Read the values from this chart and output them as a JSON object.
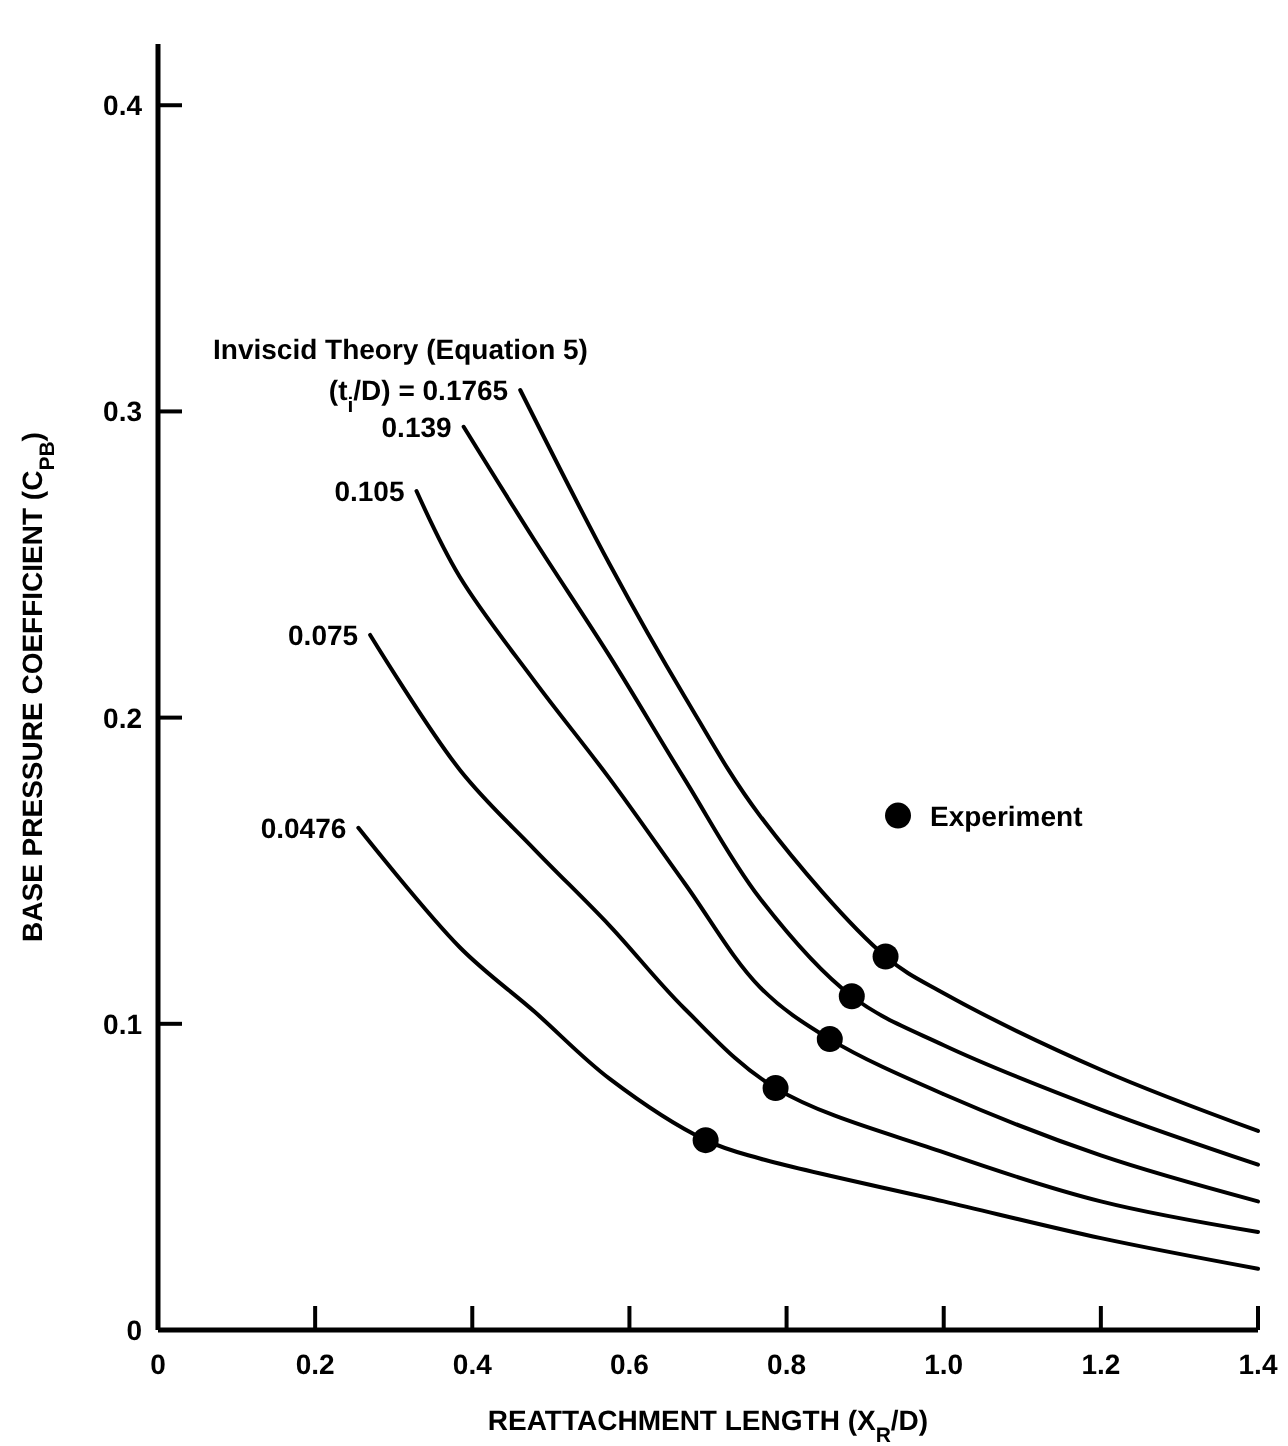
{
  "chart_data": {
    "type": "line",
    "xlabel": "REATTACHMENT LENGTH (X$_{R}$/D)",
    "ylabel": "BASE PRESSURE COEFFICIENT (C$_{PB}$)",
    "annotations": [
      "Inviscid Theory (Equation 5)"
    ],
    "xlim": [
      0,
      1.4
    ],
    "ylim": [
      0,
      0.42
    ],
    "xticks": [
      0,
      0.2,
      0.4,
      0.6,
      0.8,
      {
        "value": 1,
        "label": "1.0"
      },
      1.2,
      1.4
    ],
    "yticks": [
      0,
      0.1,
      0.2,
      0.3,
      0.4
    ],
    "grid": false,
    "legend": "right",
    "line_style": "solid",
    "series": [
      {
        "name": "(t$_{i}$/D) = 0.1765",
        "color": "#000000",
        "marker": "none",
        "x": [
          0.461,
          0.575,
          0.67,
          0.766,
          0.926,
          1.0,
          1.2,
          1.4
        ],
        "values": [
          0.307,
          0.25,
          0.207,
          0.168,
          0.122,
          0.11,
          0.085,
          0.065
        ]
      },
      {
        "name": "0.139",
        "color": "#000000",
        "marker": "none",
        "x": [
          0.389,
          0.479,
          0.575,
          0.67,
          0.766,
          0.883,
          1.0,
          1.2,
          1.4
        ],
        "values": [
          0.295,
          0.258,
          0.22,
          0.18,
          0.141,
          0.109,
          0.093,
          0.072,
          0.054
        ]
      },
      {
        "name": "0.105",
        "color": "#000000",
        "marker": "none",
        "x": [
          0.329,
          0.384,
          0.479,
          0.575,
          0.67,
          0.766,
          0.855,
          1.0,
          1.2,
          1.4
        ],
        "values": [
          0.274,
          0.246,
          0.212,
          0.18,
          0.146,
          0.112,
          0.095,
          0.077,
          0.057,
          0.042
        ]
      },
      {
        "name": "0.075",
        "color": "#000000",
        "marker": "none",
        "x": [
          0.27,
          0.384,
          0.479,
          0.575,
          0.67,
          0.786,
          1.0,
          1.2,
          1.4
        ],
        "values": [
          0.227,
          0.183,
          0.157,
          0.132,
          0.105,
          0.079,
          0.058,
          0.042,
          0.032
        ]
      },
      {
        "name": "0.0476",
        "color": "#000000",
        "marker": "none",
        "x": [
          0.255,
          0.384,
          0.479,
          0.575,
          0.697,
          0.766,
          1.0,
          1.2,
          1.4
        ],
        "values": [
          0.164,
          0.125,
          0.104,
          0.082,
          0.062,
          0.056,
          0.042,
          0.03,
          0.02
        ]
      },
      {
        "name": "Experiment",
        "type": "scatter",
        "color": "#000000",
        "marker": "circle",
        "x": [
          0.697,
          0.786,
          0.855,
          0.883,
          0.926
        ],
        "values": [
          0.062,
          0.079,
          0.095,
          0.109,
          0.122
        ]
      }
    ]
  }
}
